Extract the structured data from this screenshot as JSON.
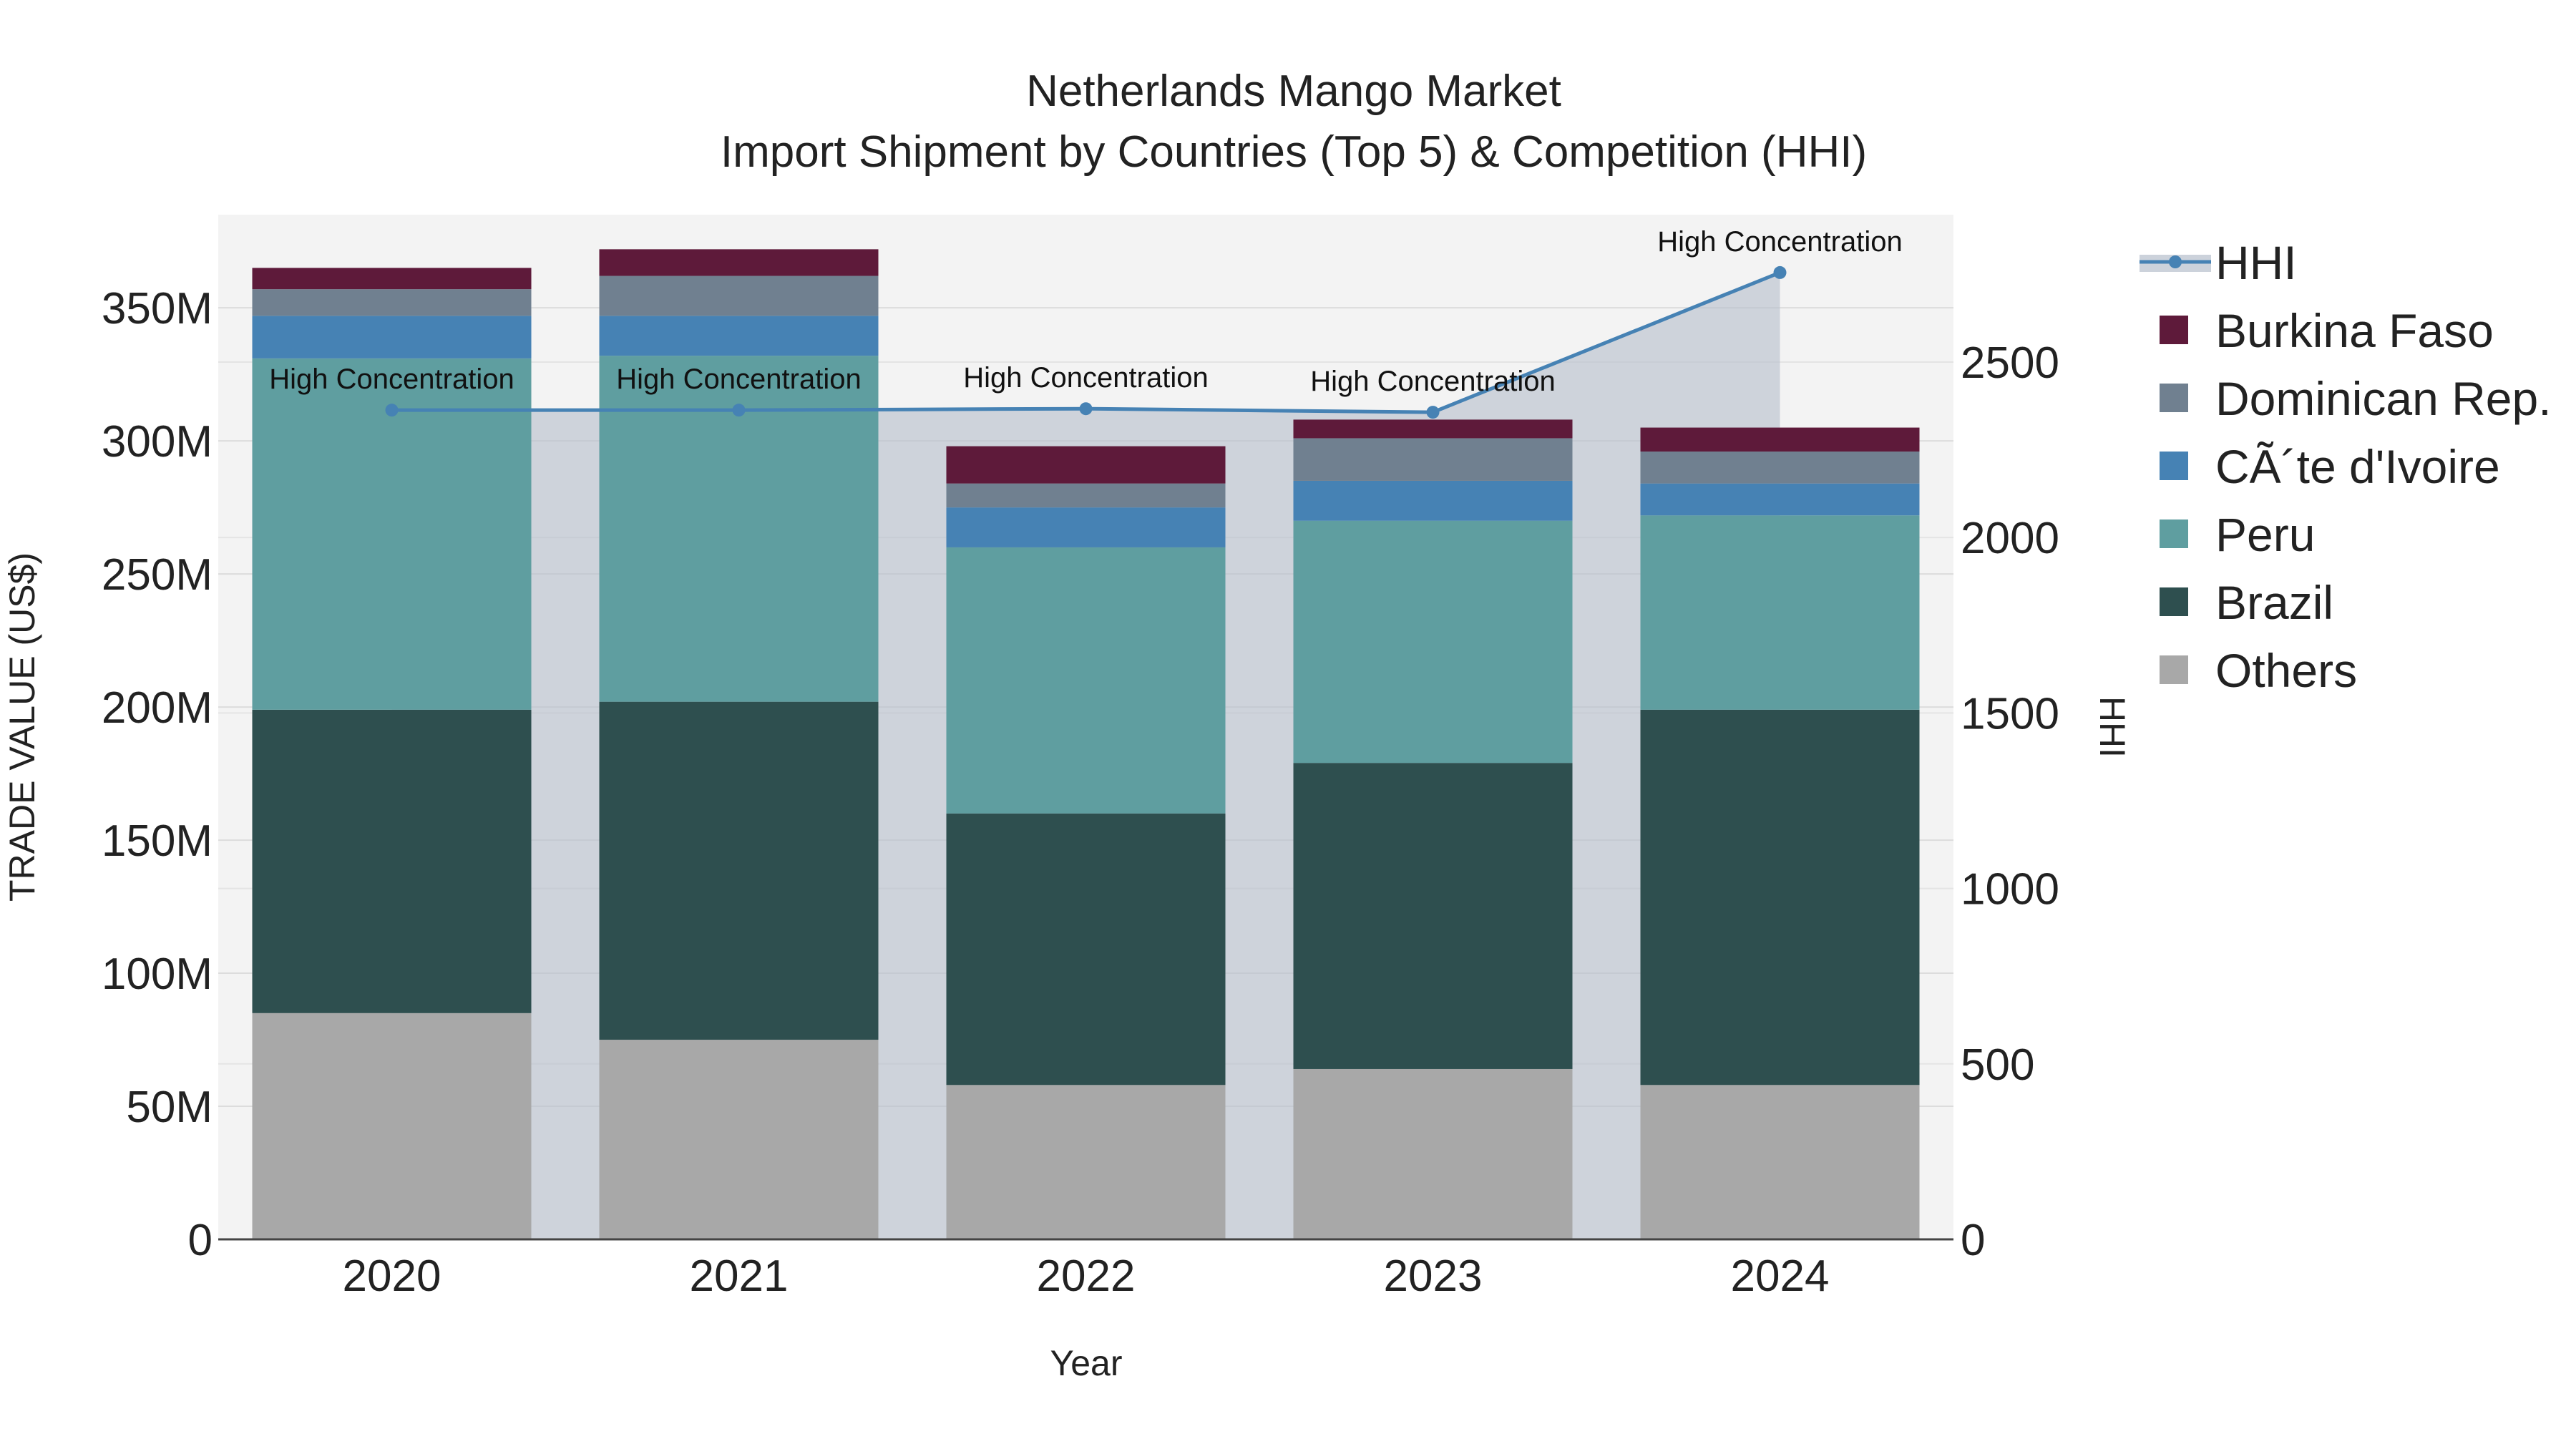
{
  "chart_data": {
    "type": "bar",
    "title": "Netherlands Mango Market",
    "subtitle": "Import Shipment by Countries (Top 5) & Competition (HHI)",
    "xlabel": "Year",
    "ylabel": "TRADE VALUE (US$)",
    "y2label": "HHI",
    "categories": [
      "2020",
      "2021",
      "2022",
      "2023",
      "2024"
    ],
    "ylim": [
      0,
      385000000
    ],
    "y2lim": [
      0,
      2920
    ],
    "yticks": [
      0,
      50000000,
      100000000,
      150000000,
      200000000,
      250000000,
      300000000,
      350000000
    ],
    "ytick_labels": [
      "0",
      "50M",
      "100M",
      "150M",
      "200M",
      "250M",
      "300M",
      "350M"
    ],
    "y2ticks": [
      0,
      500,
      1000,
      1500,
      2000,
      2500
    ],
    "y2tick_labels": [
      "0",
      "500",
      "1000",
      "1500",
      "2000",
      "2500"
    ],
    "stack_order": [
      "Others",
      "Brazil",
      "Peru",
      "CÃ´te d'Ivoire",
      "Dominican Rep.",
      "Burkina Faso"
    ],
    "series": [
      {
        "name": "Others",
        "color": "#a8a8a8",
        "values": [
          85000000,
          75000000,
          58000000,
          64000000,
          58000000
        ]
      },
      {
        "name": "Brazil",
        "color": "#2e4f4f",
        "values": [
          114000000,
          127000000,
          102000000,
          115000000,
          141000000
        ]
      },
      {
        "name": "Peru",
        "color": "#5f9ea0",
        "values": [
          132000000,
          130000000,
          100000000,
          91000000,
          73000000
        ]
      },
      {
        "name": "CÃ´te d'Ivoire",
        "color": "#4682b4",
        "values": [
          16000000,
          15000000,
          15000000,
          15000000,
          12000000
        ]
      },
      {
        "name": "Dominican Rep.",
        "color": "#708090",
        "values": [
          10000000,
          15000000,
          9000000,
          16000000,
          12000000
        ]
      },
      {
        "name": "Burkina Faso",
        "color": "#5e1a3a",
        "values": [
          8000000,
          10000000,
          14000000,
          7000000,
          9000000
        ]
      }
    ],
    "hhi": {
      "name": "HHI",
      "color": "#4682b4",
      "values": [
        2363,
        2363,
        2367,
        2357,
        2755
      ],
      "annotations": [
        "High Concentration",
        "High Concentration",
        "High Concentration",
        "High Concentration",
        "High Concentration"
      ]
    },
    "legend_order": [
      "HHI",
      "Burkina Faso",
      "Dominican Rep.",
      "CÃ´te d'Ivoire",
      "Peru",
      "Brazil",
      "Others"
    ],
    "legend_position": "right"
  }
}
